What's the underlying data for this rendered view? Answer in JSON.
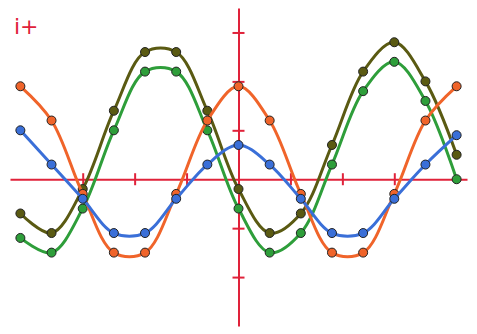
{
  "chart_data": {
    "type": "line",
    "title": "i+",
    "x": [
      -4.2,
      -3.6,
      -3.0,
      -2.4,
      -1.8,
      -1.2,
      -0.6,
      0,
      0.6,
      1.2,
      1.8,
      2.4,
      3.0,
      3.6,
      4.2
    ],
    "series": [
      {
        "color": "#5a5a12",
        "marker": "circle",
        "line_style": "solid",
        "values": [
          -0.7,
          -1.1,
          -0.2,
          1.4,
          2.6,
          2.6,
          1.4,
          -0.2,
          -1.1,
          -0.7,
          0.7,
          2.2,
          2.8,
          2.0,
          0.5
        ]
      },
      {
        "color": "#2e9e3a",
        "marker": "circle",
        "line_style": "solid",
        "values": [
          -1.2,
          -1.5,
          -0.6,
          1.0,
          2.2,
          2.2,
          1.0,
          -0.6,
          -1.5,
          -1.1,
          0.3,
          1.8,
          2.4,
          1.6,
          0.0
        ]
      },
      {
        "color": "#f0642a",
        "marker": "circle",
        "line_style": "solid",
        "values": [
          1.9,
          1.2,
          -0.3,
          -1.5,
          -1.5,
          -0.3,
          1.2,
          1.9,
          1.2,
          -0.3,
          -1.5,
          -1.5,
          -0.3,
          1.2,
          1.9
        ]
      },
      {
        "color": "#3a6fd8",
        "marker": "circle",
        "line_style": "solid",
        "values": [
          1.0,
          0.3,
          -0.4,
          -1.1,
          -1.1,
          -0.4,
          0.3,
          0.7,
          0.3,
          -0.4,
          -1.1,
          -1.1,
          -0.4,
          0.3,
          0.9
        ]
      }
    ],
    "xlim": [
      -4.4,
      4.4
    ],
    "ylim": [
      -3,
      3.5
    ],
    "xticks": [
      -3,
      -2,
      -1,
      0,
      1,
      2,
      3
    ],
    "yticks": [
      -2,
      -1,
      1,
      2,
      3
    ],
    "tick_labels": false,
    "grid": false
  }
}
